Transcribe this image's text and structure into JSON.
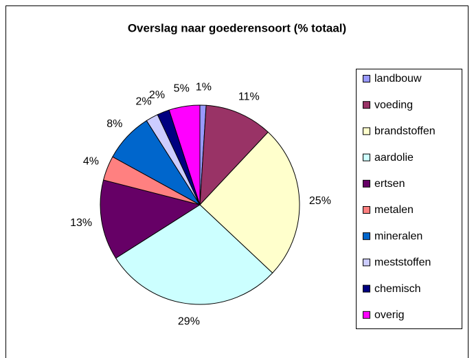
{
  "chart_data": {
    "type": "pie",
    "title": "Overslag naar goederensoort (% totaal)",
    "categories": [
      "landbouw",
      "voeding",
      "brandstoffen",
      "aardolie",
      "ertsen",
      "metalen",
      "mineralen",
      "meststoffen",
      "chemisch",
      "overig"
    ],
    "values": [
      1,
      11,
      25,
      29,
      13,
      4,
      8,
      2,
      2,
      5
    ],
    "value_labels": [
      "1%",
      "11%",
      "25%",
      "29%",
      "13%",
      "4%",
      "8%",
      "2%",
      "2%",
      "5%"
    ],
    "colors": [
      "#9999ff",
      "#993366",
      "#ffffcc",
      "#ccffff",
      "#660066",
      "#ff8080",
      "#0066cc",
      "#ccccff",
      "#000080",
      "#ff00ff"
    ],
    "legend": "right"
  }
}
